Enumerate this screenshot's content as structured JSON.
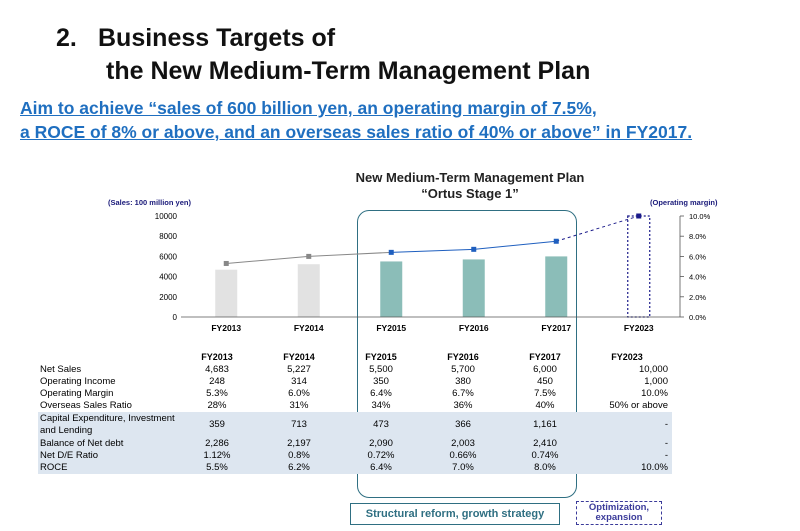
{
  "title": {
    "number": "2.",
    "line1": "Business Targets of",
    "line2": "the New Medium-Term Management Plan"
  },
  "subtitle": {
    "line1": "Aim to achieve “sales of 600 billion yen, an operating margin of 7.5%,",
    "line2": "a ROCE of 8% or above, and an overseas sales ratio of 40% or above” in FY2017."
  },
  "plan_label": {
    "line1": "New Medium-Term Management Plan",
    "line2": "“Ortus Stage 1”"
  },
  "tags": {
    "structural": "Structural reform, growth strategy",
    "optimization": "Optimization, expansion"
  },
  "chart_data": {
    "type": "bar",
    "categories": [
      "FY2013",
      "FY2014",
      "FY2015",
      "FY2016",
      "FY2017",
      "FY2023"
    ],
    "series": [
      {
        "values": [
          4683,
          5227,
          5500,
          5700,
          6000,
          10000
        ]
      },
      {
        "values": [
          5.3,
          6.0,
          6.4,
          6.7,
          7.5,
          10.0
        ]
      }
    ],
    "ylabel": "(Sales: 100 million yen)",
    "y2label": "(Operating margin)",
    "ylim": [
      0,
      10000
    ],
    "y2lim": [
      0,
      10.0
    ],
    "yticks": [
      "10000",
      "8000",
      "6000",
      "4000",
      "2000",
      "0"
    ],
    "y2ticks": [
      "10.0%",
      "8.0%",
      "6.0%",
      "4.0%",
      "2.0%",
      "0.0%"
    ],
    "colors": {
      "actual_bar": "#e2e2e2",
      "plan_bar": "#8bbdb8",
      "line_actual": "#888888",
      "line_plan": "#1f5fbf",
      "target": "#1a1a8a"
    }
  },
  "table": {
    "header": [
      "FY2013",
      "FY2014",
      "FY2015",
      "FY2016",
      "FY2017",
      "FY2023"
    ],
    "rows": [
      {
        "label": "Net Sales",
        "cells": [
          "4,683",
          "5,227",
          "5,500",
          "5,700",
          "6,000",
          "10,000"
        ]
      },
      {
        "label": "Operating Income",
        "cells": [
          "248",
          "314",
          "350",
          "380",
          "450",
          "1,000"
        ]
      },
      {
        "label": "Operating Margin",
        "cells": [
          "5.3%",
          "6.0%",
          "6.4%",
          "6.7%",
          "7.5%",
          "10.0%"
        ]
      },
      {
        "label": "Overseas Sales Ratio",
        "cells": [
          "28%",
          "31%",
          "34%",
          "36%",
          "40%",
          "50% or above"
        ]
      },
      {
        "label": "Capital Expenditure, Investment and Lending",
        "cells": [
          "359",
          "713",
          "473",
          "366",
          "1,161",
          "-"
        ]
      },
      {
        "label": "Balance of Net debt",
        "cells": [
          "2,286",
          "2,197",
          "2,090",
          "2,003",
          "2,410",
          "-"
        ]
      },
      {
        "label": "Net D/E Ratio",
        "cells": [
          "1.12%",
          "0.8%",
          "0.72%",
          "0.66%",
          "0.74%",
          "-"
        ]
      },
      {
        "label": "ROCE",
        "cells": [
          "5.5%",
          "6.2%",
          "6.4%",
          "7.0%",
          "8.0%",
          "10.0%"
        ]
      }
    ]
  }
}
